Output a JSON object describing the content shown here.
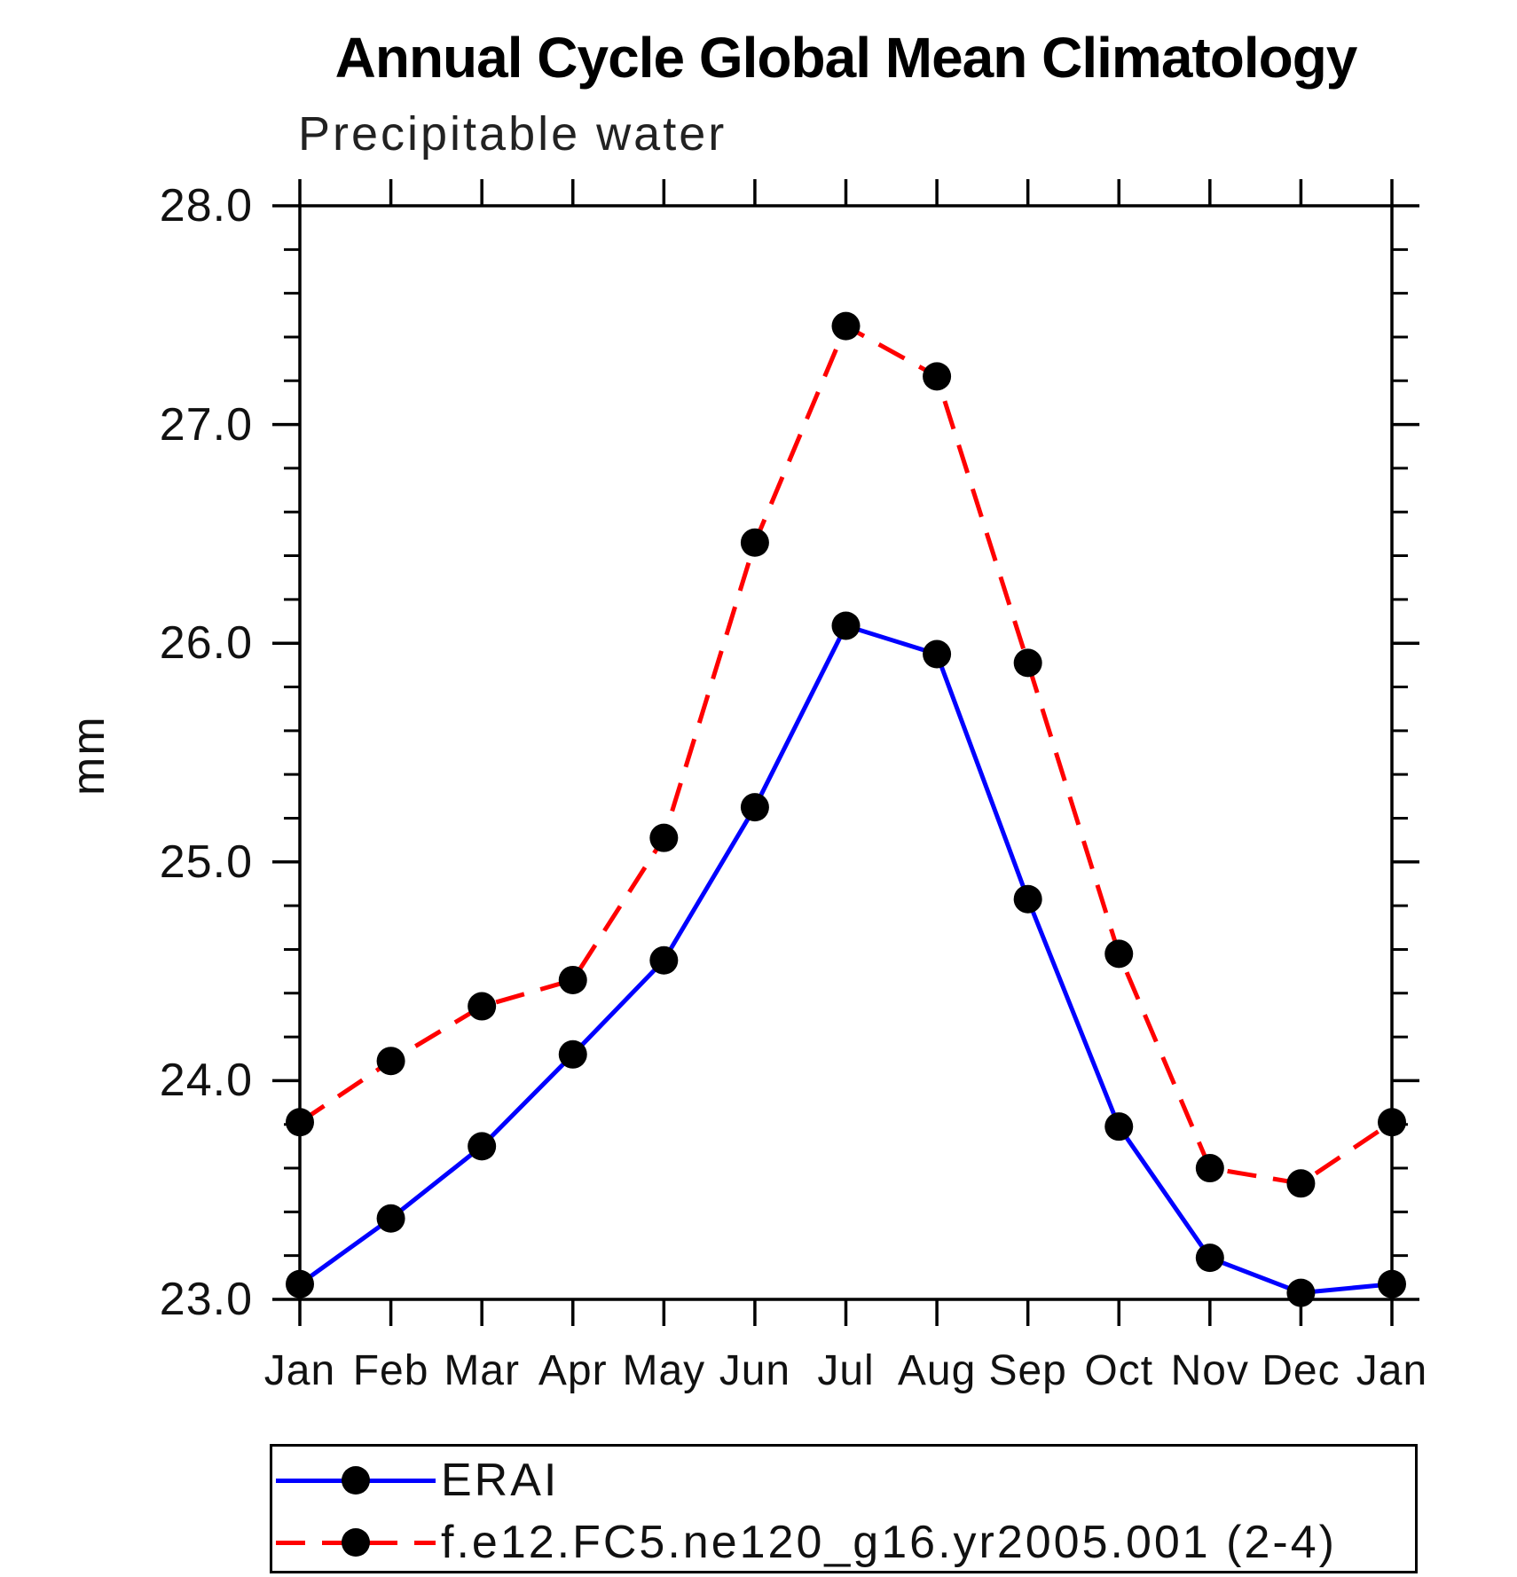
{
  "title": "Annual Cycle Global Mean Climatology",
  "subtitle": "Precipitable water",
  "y_axis": {
    "label": "mm",
    "tick_labels": [
      "28.0",
      "27.0",
      "26.0",
      "25.0",
      "24.0",
      "23.0"
    ]
  },
  "x_axis": {
    "tick_labels": [
      "Jan",
      "Feb",
      "Mar",
      "Apr",
      "May",
      "Jun",
      "Jul",
      "Aug",
      "Sep",
      "Oct",
      "Nov",
      "Dec",
      "Jan"
    ]
  },
  "legend": {
    "entries": [
      {
        "label": "ERAI",
        "color": "#0000ff",
        "style": "solid",
        "marker": "circle"
      },
      {
        "label": "f.e12.FC5.ne120_g16.yr2005.001 (2-4)",
        "color": "#ff0000",
        "style": "dashed",
        "marker": "circle"
      }
    ]
  },
  "chart_data": {
    "type": "line",
    "title": "Annual Cycle Global Mean Climatology",
    "subtitle": "Precipitable water",
    "xlabel": "",
    "ylabel": "mm",
    "categories": [
      "Jan",
      "Feb",
      "Mar",
      "Apr",
      "May",
      "Jun",
      "Jul",
      "Aug",
      "Sep",
      "Oct",
      "Nov",
      "Dec",
      "Jan"
    ],
    "series": [
      {
        "name": "ERAI",
        "color": "#0000ff",
        "style": "solid",
        "marker": "circle",
        "values": [
          23.07,
          23.37,
          23.7,
          24.12,
          24.55,
          25.25,
          26.08,
          25.95,
          24.83,
          23.79,
          23.19,
          23.03,
          23.07
        ]
      },
      {
        "name": "f.e12.FC5.ne120_g16.yr2005.001 (2-4)",
        "color": "#ff0000",
        "style": "dashed",
        "marker": "circle",
        "values": [
          23.81,
          24.09,
          24.34,
          24.46,
          25.11,
          26.46,
          27.45,
          27.22,
          25.91,
          24.58,
          23.6,
          23.53,
          23.81
        ]
      }
    ],
    "ylim": [
      23.0,
      28.0
    ],
    "ytick_major": 1.0,
    "ytick_minor": 0.2,
    "grid": false,
    "legend_position": "bottom",
    "marker_color": "#000000",
    "axis_color": "#000000"
  }
}
